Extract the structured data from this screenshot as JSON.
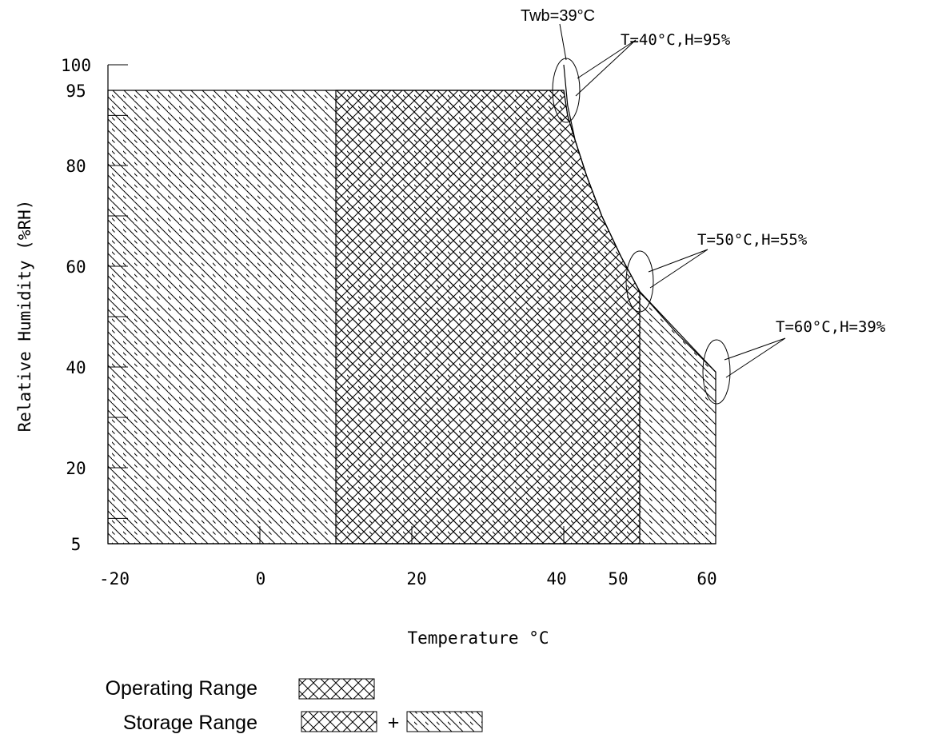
{
  "chart_data": {
    "type": "area",
    "xlabel": "Temperature °C",
    "ylabel": "Relative Humidity (%RH)",
    "xlim": [
      -20,
      60
    ],
    "ylim": [
      5,
      100
    ],
    "x_ticks": [
      -20,
      0,
      20,
      40,
      50,
      60
    ],
    "y_ticks": [
      5,
      20,
      40,
      60,
      80,
      95,
      100
    ],
    "operating_range": {
      "name": "Operating Range",
      "pattern": "crosshatch",
      "boundary": [
        [
          10,
          5
        ],
        [
          10,
          95
        ],
        [
          40,
          95
        ],
        [
          40.5,
          90
        ],
        [
          41.5,
          85
        ],
        [
          43,
          78
        ],
        [
          45,
          70
        ],
        [
          47.5,
          62
        ],
        [
          50,
          55
        ],
        [
          50,
          5
        ]
      ]
    },
    "storage_range": {
      "name": "Storage Range",
      "pattern": "diagonal",
      "boundary": [
        [
          -20,
          5
        ],
        [
          -20,
          95
        ],
        [
          40,
          95
        ],
        [
          40.5,
          90
        ],
        [
          41.5,
          85
        ],
        [
          43,
          78
        ],
        [
          45,
          70
        ],
        [
          47.5,
          62
        ],
        [
          50,
          55
        ],
        [
          60,
          39
        ],
        [
          60,
          5
        ]
      ]
    },
    "twb_curve": [
      [
        40,
        100
      ],
      [
        40.5,
        92
      ],
      [
        41.5,
        85
      ],
      [
        43,
        78
      ],
      [
        45,
        70
      ],
      [
        47.5,
        62
      ],
      [
        50,
        55
      ],
      [
        55,
        46.5
      ],
      [
        60,
        39
      ]
    ],
    "annotations": [
      {
        "text": "Twb=39°C",
        "x": 40,
        "y": 100
      },
      {
        "text": "T=40°C,H=95%",
        "x": 40,
        "y": 95
      },
      {
        "text": "T=50°C,H=55%",
        "x": 50,
        "y": 55
      },
      {
        "text": "T=60°C,H=39%",
        "x": 60,
        "y": 39
      }
    ]
  },
  "legend": {
    "operating_label": "Operating Range",
    "storage_label": "Storage Range",
    "plus": "+"
  }
}
